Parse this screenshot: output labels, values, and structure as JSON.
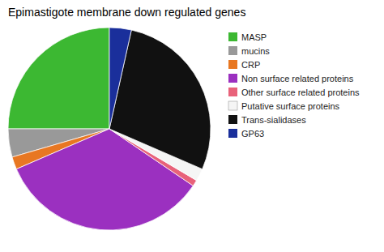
{
  "chart_data": {
    "type": "pie",
    "title": "Epimastigote membrane down regulated genes",
    "categories": [
      "MASP",
      "mucins",
      "CRP",
      "Non surface related proteins",
      "Other surface related proteins",
      "Putative surface proteins",
      "Trans-sialidases",
      "GP63"
    ],
    "values": [
      25.0,
      4.5,
      2.0,
      34.0,
      1.0,
      2.0,
      28.0,
      3.5
    ],
    "colors": [
      "#3CB832",
      "#999999",
      "#E87722",
      "#9B30C0",
      "#E8627A",
      "#F5F5F5",
      "#111111",
      "#1A2F9B"
    ],
    "legend": "upper right"
  }
}
